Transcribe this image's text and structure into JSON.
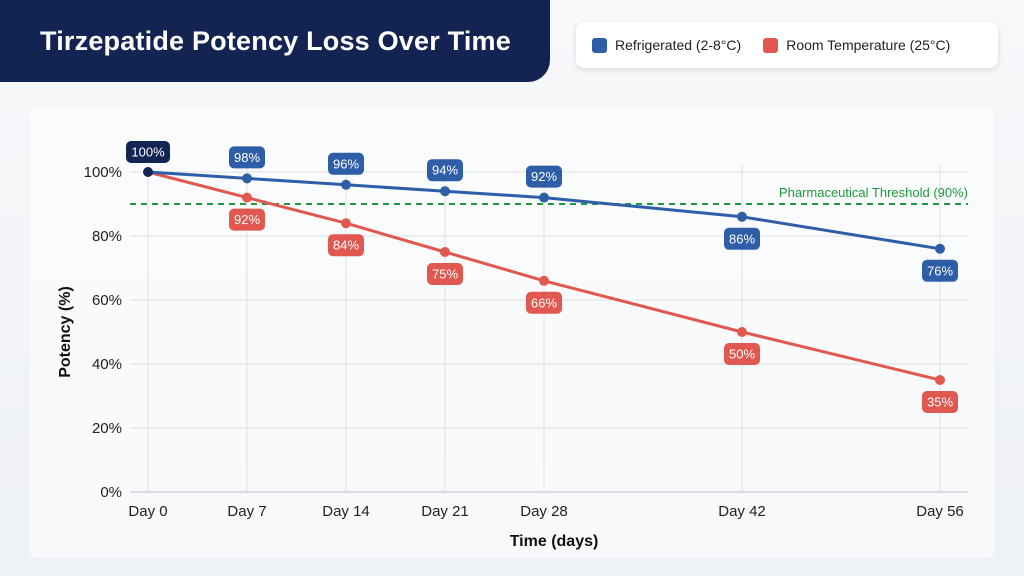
{
  "chart_data": {
    "type": "line",
    "title": "Tirzepatide Potency Loss Over Time",
    "xlabel": "Time (days)",
    "ylabel": "Potency (%)",
    "categories": [
      "Day 0",
      "Day 7",
      "Day 14",
      "Day 21",
      "Day 28",
      "Day 42",
      "Day 56"
    ],
    "x": [
      0,
      7,
      14,
      21,
      28,
      42,
      56
    ],
    "ylim": [
      0,
      100
    ],
    "yticks": [
      "0%",
      "20%",
      "40%",
      "60%",
      "80%",
      "100%"
    ],
    "series": [
      {
        "name": "Refrigerated (2-8°C)",
        "color": "#2f5ea8",
        "values": [
          100,
          98,
          96,
          94,
          92,
          86,
          76
        ],
        "labels": [
          "100%",
          "98%",
          "96%",
          "94%",
          "92%",
          "86%",
          "76%"
        ]
      },
      {
        "name": "Room Temperature (25°C)",
        "color": "#e0584f",
        "values": [
          100,
          92,
          84,
          75,
          66,
          50,
          35
        ],
        "labels": [
          "100%",
          "92%",
          "84%",
          "75%",
          "66%",
          "50%",
          "35%"
        ]
      }
    ],
    "threshold": {
      "value": 90,
      "label": "Pharmaceutical Threshold (90%)",
      "color": "#1e9a3c"
    },
    "legend_position": "top-right"
  }
}
